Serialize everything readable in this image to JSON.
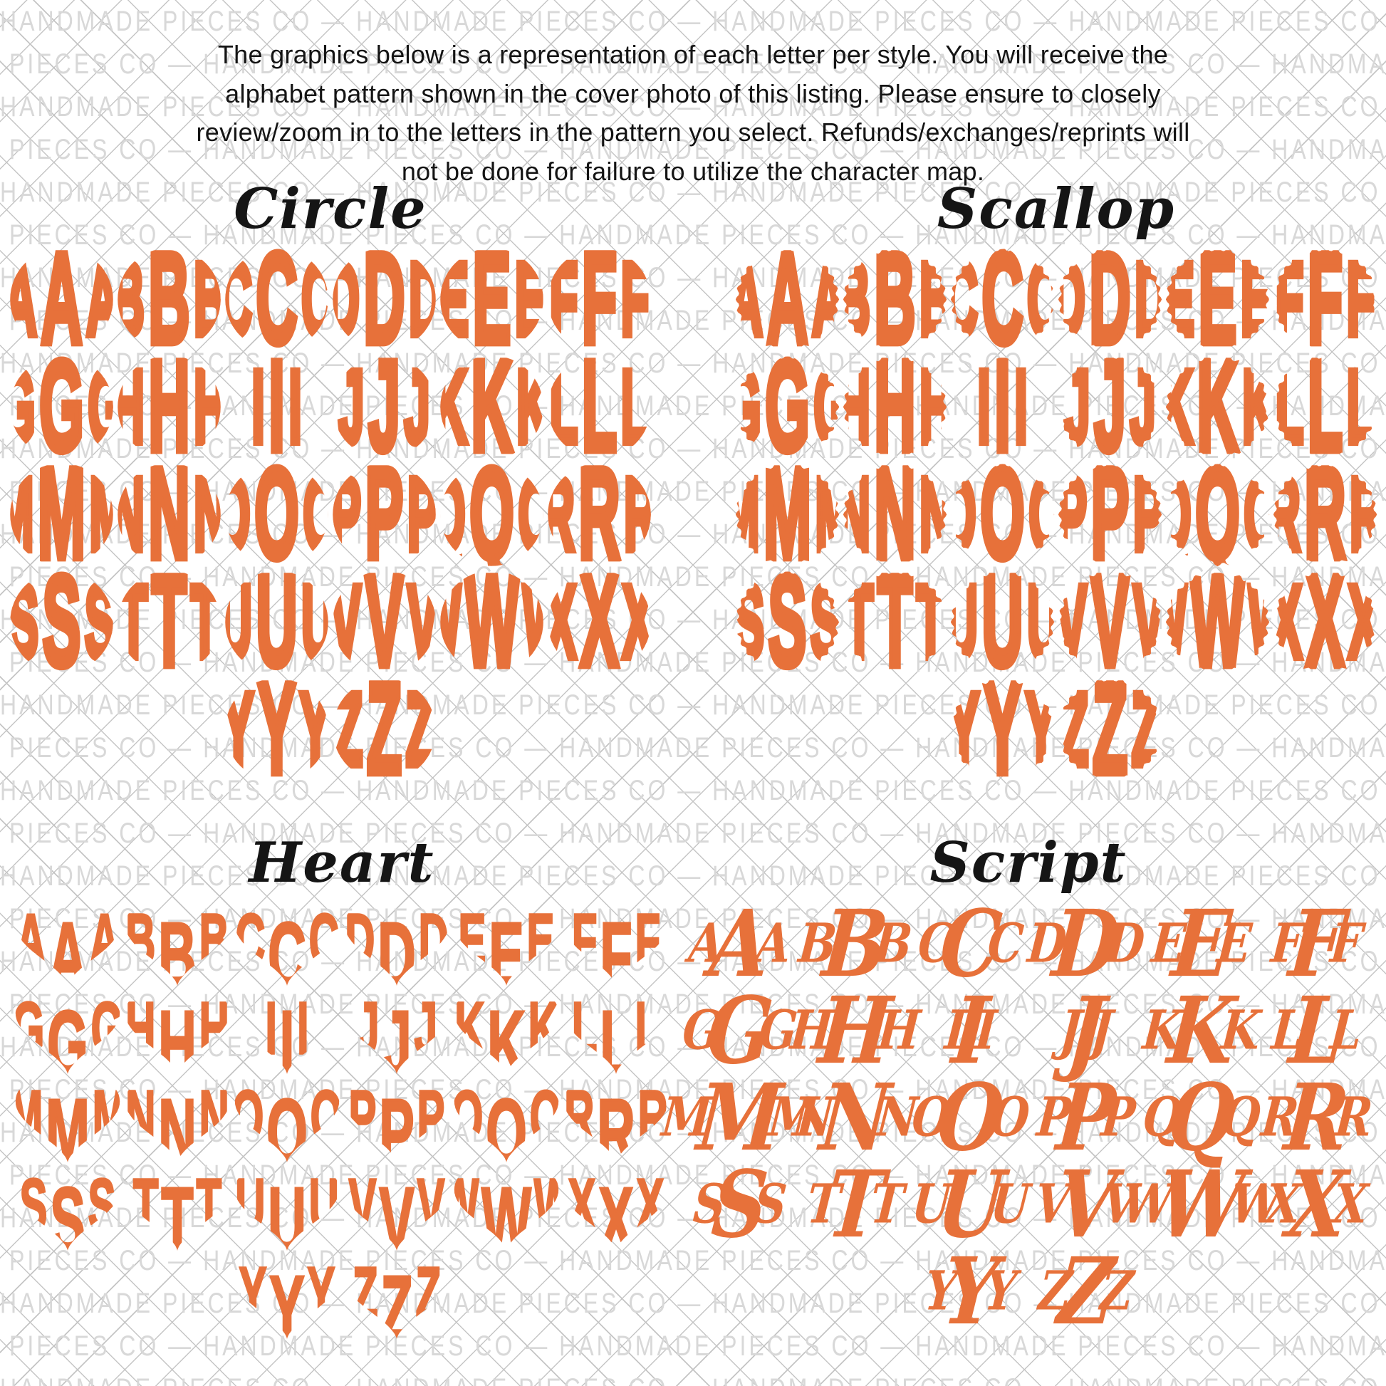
{
  "instructions": {
    "lines": [
      "The graphics below is a representation of each letter per style. You will receive the",
      "alphabet pattern shown in the cover photo of this listing. Please ensure to closely",
      "review/zoom in to the letters in the pattern you select. Refunds/exchanges/reprints will",
      "not be done for failure to utilize the character map."
    ]
  },
  "watermark": {
    "text": "HANDMADE PIECES CO — ",
    "text_color": "#d8d8d8",
    "line_color": "#c5c5c5"
  },
  "colors": {
    "monogram_orange": "#e7713a",
    "heading_black": "#151515",
    "body_text": "#141414",
    "background": "#ffffff"
  },
  "alphabet": "ABCDEFGHIJKLMNOPQRSTUVWXYZ",
  "letters_per_monogram": 3,
  "grid_rows": [
    [
      "A",
      "B",
      "C",
      "D",
      "E",
      "F"
    ],
    [
      "G",
      "H",
      "I",
      "J",
      "K",
      "L"
    ],
    [
      "M",
      "N",
      "O",
      "P",
      "Q",
      "R"
    ],
    [
      "S",
      "T",
      "U",
      "V",
      "W",
      "X"
    ],
    [
      "Y",
      "Z"
    ]
  ],
  "sections": [
    {
      "id": "circle",
      "title": "Circle"
    },
    {
      "id": "scallop",
      "title": "Scallop"
    },
    {
      "id": "heart",
      "title": "Heart"
    },
    {
      "id": "script",
      "title": "Script"
    }
  ]
}
